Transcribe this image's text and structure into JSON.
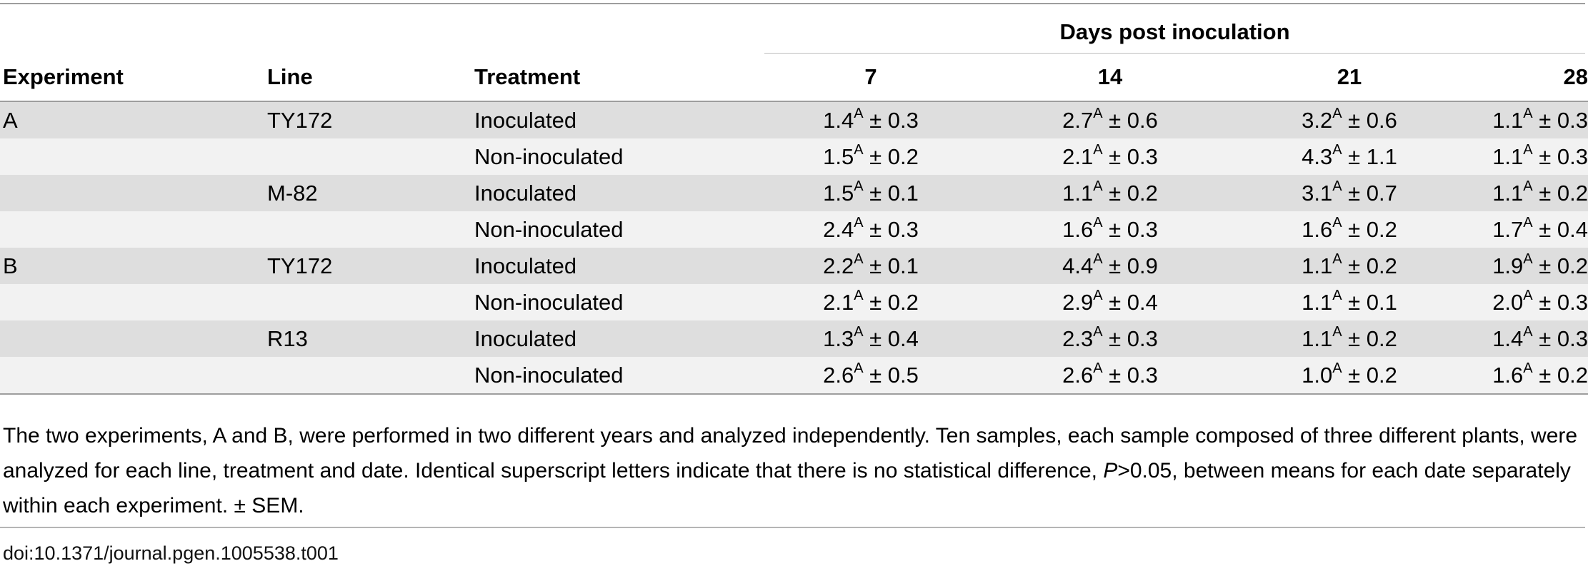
{
  "table": {
    "group_header": "Days post inoculation",
    "columns": {
      "experiment": "Experiment",
      "line": "Line",
      "treatment": "Treatment",
      "d7": "7",
      "d14": "14",
      "d21": "21",
      "d28": "28"
    },
    "rows": [
      {
        "experiment": "A",
        "line": "TY172",
        "treatment": "Inoculated",
        "d7": {
          "mean": "1.4",
          "sup": "A",
          "sem": "± 0.3"
        },
        "d14": {
          "mean": "2.7",
          "sup": "A",
          "sem": "± 0.6"
        },
        "d21": {
          "mean": "3.2",
          "sup": "A",
          "sem": "± 0.6"
        },
        "d28": {
          "mean": "1.1",
          "sup": "A",
          "sem": "± 0.3"
        }
      },
      {
        "experiment": "",
        "line": "",
        "treatment": "Non-inoculated",
        "d7": {
          "mean": "1.5",
          "sup": "A",
          "sem": "± 0.2"
        },
        "d14": {
          "mean": "2.1",
          "sup": "A",
          "sem": "± 0.3"
        },
        "d21": {
          "mean": "4.3",
          "sup": "A",
          "sem": "± 1.1"
        },
        "d28": {
          "mean": "1.1",
          "sup": "A",
          "sem": "± 0.3"
        }
      },
      {
        "experiment": "",
        "line": "M-82",
        "treatment": "Inoculated",
        "d7": {
          "mean": "1.5",
          "sup": "A",
          "sem": "± 0.1"
        },
        "d14": {
          "mean": "1.1",
          "sup": "A",
          "sem": "± 0.2"
        },
        "d21": {
          "mean": "3.1",
          "sup": "A",
          "sem": "± 0.7"
        },
        "d28": {
          "mean": "1.1",
          "sup": "A",
          "sem": "± 0.2"
        }
      },
      {
        "experiment": "",
        "line": "",
        "treatment": "Non-inoculated",
        "d7": {
          "mean": "2.4",
          "sup": "A",
          "sem": "± 0.3"
        },
        "d14": {
          "mean": "1.6",
          "sup": "A",
          "sem": "± 0.3"
        },
        "d21": {
          "mean": "1.6",
          "sup": "A",
          "sem": "± 0.2"
        },
        "d28": {
          "mean": "1.7",
          "sup": "A",
          "sem": "± 0.4"
        }
      },
      {
        "experiment": "B",
        "line": "TY172",
        "treatment": "Inoculated",
        "d7": {
          "mean": "2.2",
          "sup": "A",
          "sem": "± 0.1"
        },
        "d14": {
          "mean": "4.4",
          "sup": "A",
          "sem": "± 0.9"
        },
        "d21": {
          "mean": "1.1",
          "sup": "A",
          "sem": "± 0.2"
        },
        "d28": {
          "mean": "1.9",
          "sup": "A",
          "sem": "± 0.2"
        }
      },
      {
        "experiment": "",
        "line": "",
        "treatment": "Non-inoculated",
        "d7": {
          "mean": "2.1",
          "sup": "A",
          "sem": "± 0.2"
        },
        "d14": {
          "mean": "2.9",
          "sup": "A",
          "sem": "± 0.4"
        },
        "d21": {
          "mean": "1.1",
          "sup": "A",
          "sem": "± 0.1"
        },
        "d28": {
          "mean": "2.0",
          "sup": "A",
          "sem": "± 0.3"
        }
      },
      {
        "experiment": "",
        "line": "R13",
        "treatment": "Inoculated",
        "d7": {
          "mean": "1.3",
          "sup": "A",
          "sem": "± 0.4"
        },
        "d14": {
          "mean": "2.3",
          "sup": "A",
          "sem": "± 0.3"
        },
        "d21": {
          "mean": "1.1",
          "sup": "A",
          "sem": "± 0.2"
        },
        "d28": {
          "mean": "1.4",
          "sup": "A",
          "sem": "± 0.3"
        }
      },
      {
        "experiment": "",
        "line": "",
        "treatment": "Non-inoculated",
        "d7": {
          "mean": "2.6",
          "sup": "A",
          "sem": "± 0.5"
        },
        "d14": {
          "mean": "2.6",
          "sup": "A",
          "sem": "± 0.3"
        },
        "d21": {
          "mean": "1.0",
          "sup": "A",
          "sem": "± 0.2"
        },
        "d28": {
          "mean": "1.6",
          "sup": "A",
          "sem": "± 0.2"
        }
      }
    ]
  },
  "footnote": {
    "part1": "The two experiments, A and B, were performed in two different years and analyzed independently. Ten samples, each sample composed of three different plants, were analyzed for each line, treatment and date. Identical superscript letters indicate that there is no statistical difference, ",
    "p_symbol": "P",
    "part2": ">0.05, between means for each date separately within each experiment. ± SEM."
  },
  "doi": "doi:10.1371/journal.pgen.1005538.t001"
}
